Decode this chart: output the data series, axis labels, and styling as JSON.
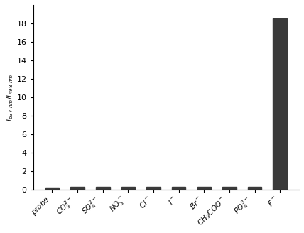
{
  "values": [
    0.25,
    0.28,
    0.32,
    0.32,
    0.28,
    0.28,
    0.28,
    0.28,
    0.28,
    18.5
  ],
  "bar_color": "#3a3a3a",
  "ylim": [
    0,
    20
  ],
  "yticks": [
    0,
    2,
    4,
    6,
    8,
    10,
    12,
    14,
    16,
    18
  ],
  "background_color": "#ffffff",
  "ylabel_fontsize": 7.5,
  "tick_fontsize": 8,
  "xlabel_fontsize": 7.5,
  "bar_width": 0.55,
  "figsize": [
    4.28,
    3.28
  ],
  "dpi": 100
}
